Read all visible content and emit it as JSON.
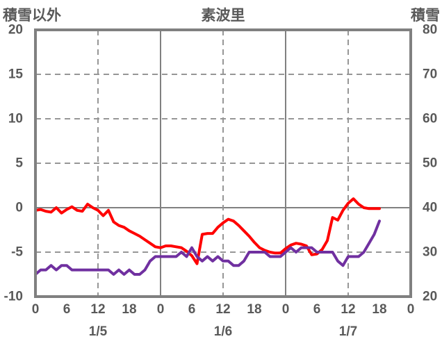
{
  "title": "素波里",
  "axis_titles": {
    "left": "積雪以外",
    "right": "積雪"
  },
  "colors": {
    "left_series": "#ff0000",
    "right_series": "#7030a0",
    "border": "#808080",
    "solid_grid": "#808080",
    "dashed_grid": "#969696",
    "label_text": "#595959"
  },
  "chart_data": {
    "type": "line",
    "title": "素波里",
    "grid": "on",
    "legend": "none",
    "x_axis": {
      "range_hours": [
        0,
        72
      ],
      "tick_step_hours": 6,
      "labels": [
        "0",
        "6",
        "12",
        "18",
        "0",
        "6",
        "12",
        "18",
        "0",
        "6",
        "12",
        "18",
        "0"
      ],
      "dates": [
        "1/5",
        "1/6",
        "1/7"
      ],
      "date_positions_hours": [
        12,
        36,
        60
      ],
      "solid_gridline_hours": [
        24,
        48
      ],
      "dashed_gridline_hours": [
        12,
        36,
        60
      ]
    },
    "y_left": {
      "min": -10,
      "max": 20,
      "ticks": [
        20,
        15,
        10,
        5,
        0,
        -5,
        -10
      ],
      "solid_line_at": 0
    },
    "y_right": {
      "min": 20,
      "max": 80,
      "ticks": [
        80,
        70,
        60,
        50,
        40,
        30,
        20
      ],
      "solid_line_at": 40
    },
    "series": [
      {
        "name": "積雪以外",
        "axis": "left",
        "color": "#ff0000",
        "start_hour": 0,
        "step_hours": 1,
        "values": [
          -0.3,
          -0.2,
          -0.4,
          -0.5,
          0.0,
          -0.6,
          -0.2,
          0.1,
          -0.3,
          -0.4,
          0.4,
          0.0,
          -0.3,
          -0.9,
          -0.3,
          -1.6,
          -2.0,
          -2.2,
          -2.6,
          -2.9,
          -3.2,
          -3.6,
          -4.0,
          -4.4,
          -4.5,
          -4.3,
          -4.3,
          -4.4,
          -4.5,
          -4.9,
          -5.4,
          -6.3,
          -3.0,
          -2.9,
          -2.9,
          -2.2,
          -1.7,
          -1.3,
          -1.5,
          -2.0,
          -2.6,
          -3.2,
          -3.9,
          -4.5,
          -4.8,
          -5.0,
          -5.1,
          -5.1,
          -4.6,
          -4.2,
          -4.0,
          -4.1,
          -4.3,
          -5.3,
          -5.2,
          -4.7,
          -3.7,
          -1.1,
          -1.4,
          -0.3,
          0.5,
          1.0,
          0.4,
          0.0,
          -0.1,
          -0.1,
          -0.1
        ]
      },
      {
        "name": "積雪",
        "axis": "right",
        "color": "#7030a0",
        "start_hour": 0,
        "step_hours": 1,
        "values": [
          25,
          26,
          26,
          27,
          26,
          27,
          27,
          26,
          26,
          26,
          26,
          26,
          26,
          26,
          26,
          25,
          26,
          25,
          26,
          25,
          25,
          26,
          28,
          29,
          29,
          29,
          29,
          29,
          30,
          29,
          31,
          29,
          28,
          29,
          28,
          29,
          28,
          28,
          27,
          27,
          28,
          30,
          30,
          30,
          30,
          29,
          29,
          29,
          30,
          31,
          30,
          31,
          31,
          31,
          30,
          30,
          30,
          30,
          28,
          27,
          29,
          29,
          29,
          30,
          32,
          34,
          37
        ]
      }
    ]
  }
}
